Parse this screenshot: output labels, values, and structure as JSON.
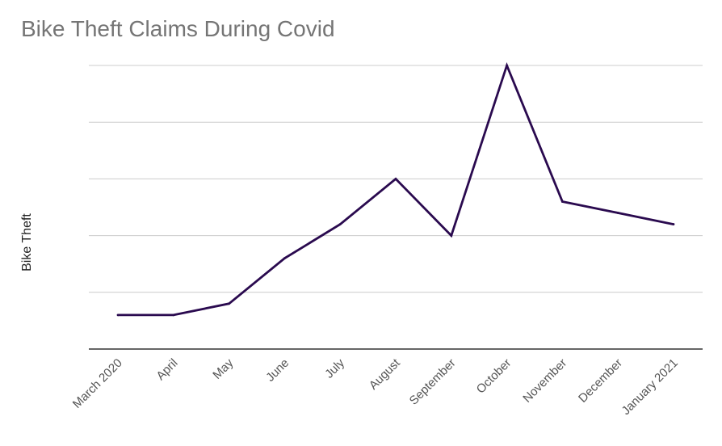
{
  "chart_data": {
    "type": "line",
    "title": "Bike Theft Claims During Covid",
    "xlabel": "",
    "ylabel": "Bike Theft",
    "categories": [
      "March 2020",
      "April",
      "May",
      "June",
      "July",
      "August",
      "September",
      "October",
      "November",
      "December",
      "January 2021"
    ],
    "series": [
      {
        "values": [
          0.6,
          0.6,
          0.8,
          1.6,
          2.2,
          3.0,
          2.0,
          5.0,
          2.6,
          2.4,
          2.2
        ]
      }
    ],
    "ylim": [
      0,
      5
    ],
    "grid": true,
    "y_tick_labels_shown": false,
    "colors": {
      "line": "#2a0a4f",
      "grid": "#cccccc",
      "axis": "#333333",
      "title": "#757575"
    }
  }
}
